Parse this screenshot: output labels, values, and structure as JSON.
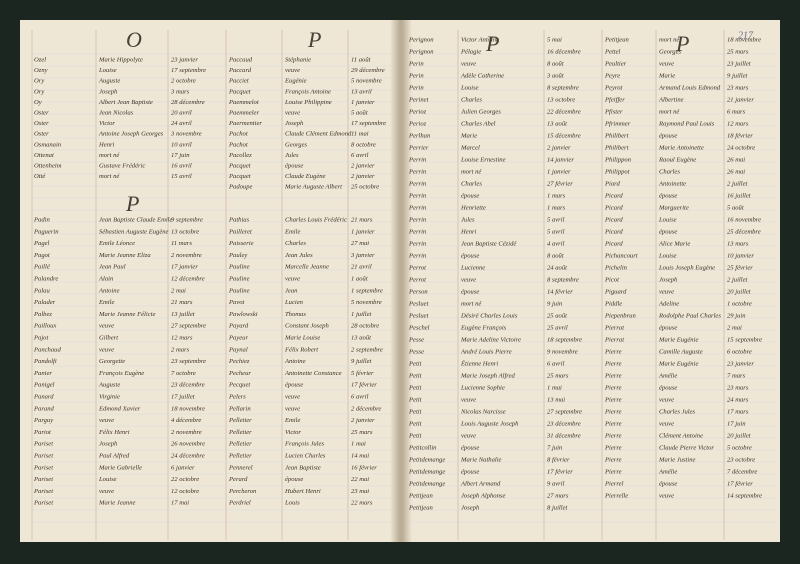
{
  "left_page": {
    "top": {
      "headers": [
        "O",
        "P"
      ],
      "columns": [
        [
          [
            "Ozel",
            "Marie Hippolyte",
            "23 janvier"
          ],
          [
            "Ozny",
            "Louise",
            "17 septembre"
          ],
          [
            "Ory",
            "Auguste",
            "2 octobre"
          ],
          [
            "Ory",
            "Joseph",
            "3 mars"
          ],
          [
            "Oy",
            "Albert Jean Baptiste",
            "28 décembre"
          ],
          [
            "Oster",
            "Jean Nicolas",
            "20 avril"
          ],
          [
            "Oster",
            "Victor",
            "24 avril"
          ],
          [
            "Oster",
            "Antoine Joseph Georges",
            "3 novembre"
          ],
          [
            "Osmanain",
            "Henri",
            "10 avril"
          ],
          [
            "Ottenat",
            "mort né",
            "17 juin"
          ],
          [
            "Ottenheim",
            "Gustave Frédéric",
            "16 avril"
          ],
          [
            "Otté",
            "mort né",
            "15 avril"
          ]
        ],
        [
          [
            "Paccaud",
            "Stéphanie",
            "11 août"
          ],
          [
            "Paccard",
            "veuve",
            "29 décembre"
          ],
          [
            "Pacciet",
            "Eugénie",
            "5 novembre"
          ],
          [
            "Pacquet",
            "François Antoine",
            "13 avril"
          ],
          [
            "Paemmelot",
            "Louise Philippine",
            "1 janvier"
          ],
          [
            "Paemmeler",
            "veuve",
            "5 août"
          ],
          [
            "Paermentier",
            "Joseph",
            "17 septembre"
          ],
          [
            "Pachot",
            "Claude Clément Edmond",
            "11 mai"
          ],
          [
            "Pachot",
            "Georges",
            "8 octobre"
          ],
          [
            "Pacollez",
            "Jules",
            "6 avril"
          ],
          [
            "Pacquet",
            "épouse",
            "2 janvier"
          ],
          [
            "Pacquet",
            "Claude Eugène",
            "2 janvier"
          ],
          [
            "Padoupe",
            "Marie Auguste Albert",
            "25 octobre"
          ]
        ]
      ]
    },
    "bottom": {
      "header": "P",
      "columns": [
        [
          [
            "Padin",
            "Jean Baptiste Claude Emile",
            "9 septembre"
          ],
          [
            "Paguerin",
            "Sébastien Auguste Eugène",
            "13 octobre"
          ],
          [
            "Pagel",
            "Emile Léonce",
            "11 mars"
          ],
          [
            "Pagot",
            "Marie Jeanne Eliza",
            "2 novembre"
          ],
          [
            "Paillé",
            "Jean Paul",
            "17 janvier"
          ],
          [
            "Palandre",
            "Alain",
            "12 décembre"
          ],
          [
            "Palau",
            "Antoine",
            "2 mai"
          ],
          [
            "Palader",
            "Emile",
            "21 mars"
          ],
          [
            "Palbez",
            "Marie Jeanne Félicie",
            "13 juillet"
          ],
          [
            "Pailloux",
            "veuve",
            "27 septembre"
          ],
          [
            "Pajot",
            "Gilbert",
            "12 mars"
          ],
          [
            "Panchaud",
            "veuve",
            "2 mars"
          ],
          [
            "Pandolfi",
            "Georgette",
            "23 septembre"
          ],
          [
            "Panier",
            "François Eugène",
            "7 octobre"
          ],
          [
            "Panigel",
            "Auguste",
            "23 décembre"
          ],
          [
            "Panard",
            "Virginie",
            "17 juillet"
          ],
          [
            "Parand",
            "Edmond Xavier",
            "18 novembre"
          ],
          [
            "Parguy",
            "veuve",
            "4 décembre"
          ],
          [
            "Pariot",
            "Félix Henri",
            "2 novembre"
          ],
          [
            "Pariset",
            "Joseph",
            "26 novembre"
          ],
          [
            "Pariset",
            "Paul Alfred",
            "24 décembre"
          ],
          [
            "Pariset",
            "Marie Gabrielle",
            "6 janvier"
          ],
          [
            "Pariset",
            "Louise",
            "22 octobre"
          ],
          [
            "Pariset",
            "veuve",
            "12 octobre"
          ],
          [
            "Pariset",
            "Marie Jeanne",
            "17 mai"
          ]
        ],
        [
          [
            "Pathias",
            "Charles Louis Frédéric",
            "21 mars"
          ],
          [
            "Pailleret",
            "Emile",
            "1 janvier"
          ],
          [
            "Paisserie",
            "Charles",
            "27 mai"
          ],
          [
            "Pauley",
            "Jean Jules",
            "3 janvier"
          ],
          [
            "Pauline",
            "Marcelle Jeanne",
            "21 avril"
          ],
          [
            "Pauline",
            "veuve",
            "1 août"
          ],
          [
            "Pauline",
            "Jean",
            "1 septembre"
          ],
          [
            "Pavot",
            "Lucien",
            "5 novembre"
          ],
          [
            "Pawlowski",
            "Thomas",
            "1 juillet"
          ],
          [
            "Payard",
            "Constant Joseph",
            "28 octobre"
          ],
          [
            "Payeur",
            "Marie Louise",
            "13 août"
          ],
          [
            "Paynal",
            "Félix Robert",
            "2 septembre"
          ],
          [
            "Pechiez",
            "Antoine",
            "9 juillet"
          ],
          [
            "Pecheur",
            "Antoinette Constance",
            "5 février"
          ],
          [
            "Pecquet",
            "épouse",
            "17 février"
          ],
          [
            "Pelers",
            "veuve",
            "6 avril"
          ],
          [
            "Pellarin",
            "veuve",
            "2 décembre"
          ],
          [
            "Pelletier",
            "Emile",
            "2 janvier"
          ],
          [
            "Pelletier",
            "Victor",
            "25 mars"
          ],
          [
            "Pelletier",
            "François Jules",
            "1 mai"
          ],
          [
            "Pelletier",
            "Lucien Charles",
            "14 mai"
          ],
          [
            "Pennerel",
            "Jean Baptiste",
            "16 février"
          ],
          [
            "Perard",
            "épouse",
            "22 mai"
          ],
          [
            "Percheron",
            "Hubert Henri",
            "23 mai"
          ],
          [
            "Perdriel",
            "Louis",
            "22 mars"
          ]
        ]
      ]
    }
  },
  "right_page": {
    "page_number": "217",
    "headers": [
      "P",
      "P"
    ],
    "columns": [
      [
        [
          "Perignon",
          "Victor Antoine",
          "5 mai"
        ],
        [
          "Perignon",
          "Pélagie",
          "16 décembre"
        ],
        [
          "Perin",
          "veuve",
          "8 août"
        ],
        [
          "Perin",
          "Adèle Catherine",
          "3 août"
        ],
        [
          "Perin",
          "Louise",
          "8 septembre"
        ],
        [
          "Perinet",
          "Charles",
          "13 octobre"
        ],
        [
          "Perioz",
          "Julien Georges",
          "22 décembre"
        ],
        [
          "Perioz",
          "Charles Abel",
          "13 août"
        ],
        [
          "Perlhan",
          "Marie",
          "15 décembre"
        ],
        [
          "Perrier",
          "Marcel",
          "2 janvier"
        ],
        [
          "Perrin",
          "Louise Ernestine",
          "14 janvier"
        ],
        [
          "Perrin",
          "mort né",
          "1 janvier"
        ],
        [
          "Perrin",
          "Charles",
          "27 février"
        ],
        [
          "Perrin",
          "épouse",
          "1 mars"
        ],
        [
          "Perrin",
          "Henriette",
          "1 mars"
        ],
        [
          "Perrin",
          "Jules",
          "5 avril"
        ],
        [
          "Perrin",
          "Henri",
          "5 avril"
        ],
        [
          "Perrin",
          "Jean Baptiste Cézidé",
          "4 avril"
        ],
        [
          "Perrin",
          "épouse",
          "8 août"
        ],
        [
          "Perrot",
          "Lucienne",
          "24 août"
        ],
        [
          "Perrot",
          "veuve",
          "8 septembre"
        ],
        [
          "Person",
          "épouse",
          "14 février"
        ],
        [
          "Pesluet",
          "mort né",
          "9 juin"
        ],
        [
          "Pesluet",
          "Désiré Charles Louis",
          "25 août"
        ],
        [
          "Peschel",
          "Eugène François",
          "25 avril"
        ],
        [
          "Pesse",
          "Marie Adeline Victoire",
          "18 septembre"
        ],
        [
          "Pesse",
          "André Louis Pierre",
          "9 novembre"
        ],
        [
          "Petit",
          "Étienne Henri",
          "6 avril"
        ],
        [
          "Petit",
          "Marie Joseph Alfred",
          "25 mars"
        ],
        [
          "Petit",
          "Lucienne Sophie",
          "1 mai"
        ],
        [
          "Petit",
          "veuve",
          "13 mai"
        ],
        [
          "Petit",
          "Nicolas Narcisse",
          "27 septembre"
        ],
        [
          "Petit",
          "Louis Auguste Joseph",
          "23 décembre"
        ],
        [
          "Petit",
          "veuve",
          "31 décembre"
        ],
        [
          "Petitcollin",
          "épouse",
          "7 juin"
        ],
        [
          "Petitdemange",
          "Marie Nathalie",
          "8 février"
        ],
        [
          "Petitdemange",
          "épouse",
          "17 février"
        ],
        [
          "Petitdemange",
          "Albert Armand",
          "9 avril"
        ],
        [
          "Petitjean",
          "Joseph Alphonse",
          "27 mars"
        ],
        [
          "Petitjean",
          "Joseph",
          "8 juillet"
        ]
      ],
      [
        [
          "Petitjean",
          "mort né",
          "18 novembre"
        ],
        [
          "Pettel",
          "Georges",
          "25 mars"
        ],
        [
          "Peultier",
          "veuve",
          "23 juillet"
        ],
        [
          "Peyre",
          "Marie",
          "9 juillet"
        ],
        [
          "Peyrot",
          "Armand Louis Edmond",
          "23 mars"
        ],
        [
          "Pfeiffer",
          "Albertine",
          "21 janvier"
        ],
        [
          "Pfister",
          "mort né",
          "6 mars"
        ],
        [
          "Pfrimmer",
          "Raymond Paul Louis",
          "12 mars"
        ],
        [
          "Philibert",
          "épouse",
          "18 février"
        ],
        [
          "Philibert",
          "Marie Antoinette",
          "24 octobre"
        ],
        [
          "Philippon",
          "Raoul Eugène",
          "26 mai"
        ],
        [
          "Philippot",
          "Charles",
          "26 mai"
        ],
        [
          "Piard",
          "Antoinette",
          "2 juillet"
        ],
        [
          "Picard",
          "épouse",
          "16 juillet"
        ],
        [
          "Picard",
          "Marguerite",
          "5 août"
        ],
        [
          "Picard",
          "Louise",
          "16 novembre"
        ],
        [
          "Picard",
          "épouse",
          "25 décembre"
        ],
        [
          "Picard",
          "Alice Marie",
          "13 mars"
        ],
        [
          "Pichancourt",
          "Louise",
          "10 janvier"
        ],
        [
          "Pichelin",
          "Louis Joseph Eugène",
          "25 février"
        ],
        [
          "Picot",
          "Joseph",
          "2 juillet"
        ],
        [
          "Piguard",
          "veuve",
          "20 juillet"
        ],
        [
          "Piddle",
          "Adeline",
          "1 octobre"
        ],
        [
          "Piepenbrun",
          "Rodolphe Paul Charles",
          "29 juin"
        ],
        [
          "Pierrat",
          "épouse",
          "2 mai"
        ],
        [
          "Pierrat",
          "Marie Eugénie",
          "15 septembre"
        ],
        [
          "Pierre",
          "Camille Auguste",
          "6 octobre"
        ],
        [
          "Pierre",
          "Marie Eugénie",
          "23 janvier"
        ],
        [
          "Pierre",
          "Amélie",
          "7 mars"
        ],
        [
          "Pierre",
          "épouse",
          "23 mars"
        ],
        [
          "Pierre",
          "veuve",
          "24 mars"
        ],
        [
          "Pierre",
          "Charles Jules",
          "17 mars"
        ],
        [
          "Pierre",
          "veuve",
          "17 juin"
        ],
        [
          "Pierre",
          "Clément Antoine",
          "20 juillet"
        ],
        [
          "Pierre",
          "Claude Pierre Victor",
          "5 octobre"
        ],
        [
          "Pierre",
          "Marie Justine",
          "23 octobre"
        ],
        [
          "Pierre",
          "Amélie",
          "7 décembre"
        ],
        [
          "Pierrel",
          "épouse",
          "17 février"
        ],
        [
          "Pierrelle",
          "veuve",
          "14 septembre"
        ]
      ]
    ]
  }
}
